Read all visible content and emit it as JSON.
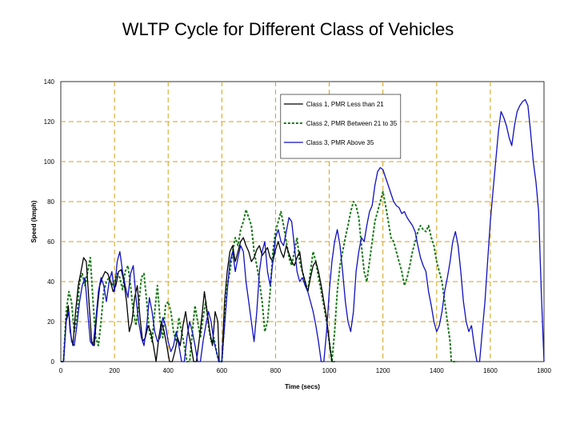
{
  "title": "WLTP Cycle for Different Class of Vehicles",
  "colors": {
    "class1": "#000000",
    "class2": "#1a7a1a",
    "class3": "#1010c0",
    "grid": "#d4a017",
    "plot_bg": "#ffffff"
  },
  "chart_data": {
    "type": "line",
    "title": "WLTP Cycle for Different Class of Vehicles",
    "xlabel": "Time (secs)",
    "ylabel": "Speed (kmph)",
    "xlim": [
      0,
      1800
    ],
    "ylim": [
      0,
      140
    ],
    "xticks": [
      0,
      200,
      400,
      600,
      800,
      1000,
      1200,
      1400,
      1600,
      1800
    ],
    "yticks": [
      0,
      20,
      40,
      60,
      80,
      100,
      120,
      140
    ],
    "grid": true,
    "legend_position": "top-right",
    "series": [
      {
        "name": "Class 1, PMR Less than 21",
        "style": "solid",
        "x": [
          0,
          10,
          20,
          28,
          35,
          45,
          55,
          65,
          75,
          85,
          95,
          105,
          115,
          125,
          135,
          145,
          155,
          165,
          175,
          185,
          195,
          205,
          215,
          225,
          235,
          245,
          255,
          265,
          275,
          285,
          295,
          305,
          315,
          325,
          335,
          345,
          355,
          365,
          375,
          385,
          395,
          405,
          415,
          425,
          435,
          445,
          455,
          465,
          475,
          485,
          495,
          505,
          515,
          525,
          535,
          545,
          555,
          565,
          575,
          585,
          590,
          600,
          610,
          620,
          630,
          640,
          650,
          660,
          670,
          680,
          690,
          700,
          710,
          720,
          730,
          740,
          750,
          760,
          770,
          780,
          790,
          800,
          810,
          820,
          830,
          840,
          850,
          860,
          870,
          880,
          890,
          900,
          910,
          920,
          930,
          940,
          950,
          960,
          970,
          980,
          990,
          1000,
          1010,
          1022
        ],
        "y": [
          0,
          0,
          20,
          28,
          15,
          8,
          25,
          38,
          45,
          52,
          50,
          30,
          10,
          8,
          25,
          38,
          42,
          45,
          44,
          40,
          35,
          38,
          45,
          46,
          40,
          30,
          15,
          20,
          32,
          38,
          22,
          10,
          12,
          18,
          15,
          8,
          0,
          12,
          20,
          15,
          8,
          0,
          0,
          5,
          12,
          8,
          18,
          25,
          15,
          8,
          0,
          0,
          10,
          22,
          35,
          25,
          15,
          8,
          25,
          20,
          0,
          0,
          30,
          45,
          55,
          58,
          50,
          55,
          60,
          62,
          58,
          55,
          50,
          52,
          56,
          58,
          53,
          55,
          57,
          52,
          50,
          56,
          60,
          55,
          52,
          58,
          54,
          50,
          48,
          52,
          55,
          45,
          40,
          35,
          42,
          48,
          50,
          45,
          38,
          30,
          22,
          10,
          0,
          0
        ]
      },
      {
        "name": "Class 2, PMR Between 21 to 35",
        "style": "dashed",
        "x": [
          0,
          10,
          20,
          30,
          40,
          50,
          60,
          70,
          80,
          90,
          100,
          110,
          120,
          130,
          140,
          150,
          160,
          170,
          180,
          190,
          200,
          210,
          220,
          230,
          240,
          250,
          260,
          270,
          280,
          290,
          300,
          310,
          320,
          330,
          340,
          350,
          360,
          370,
          380,
          390,
          400,
          410,
          420,
          430,
          440,
          450,
          460,
          470,
          480,
          490,
          500,
          510,
          520,
          530,
          540,
          550,
          560,
          570,
          580,
          589,
          600,
          610,
          620,
          630,
          640,
          650,
          660,
          670,
          680,
          690,
          700,
          710,
          720,
          730,
          740,
          750,
          760,
          770,
          780,
          790,
          800,
          810,
          820,
          830,
          840,
          850,
          860,
          870,
          880,
          890,
          900,
          910,
          920,
          930,
          940,
          950,
          960,
          970,
          980,
          990,
          1000,
          1010,
          1020,
          1030,
          1040,
          1050,
          1060,
          1070,
          1080,
          1090,
          1100,
          1110,
          1120,
          1130,
          1140,
          1150,
          1160,
          1170,
          1180,
          1190,
          1200,
          1210,
          1220,
          1230,
          1240,
          1250,
          1260,
          1270,
          1280,
          1290,
          1300,
          1310,
          1320,
          1330,
          1340,
          1350,
          1360,
          1370,
          1380,
          1390,
          1400,
          1410,
          1420,
          1430,
          1440,
          1450,
          1455,
          1465,
          1477
        ],
        "y": [
          0,
          0,
          25,
          35,
          30,
          15,
          22,
          40,
          44,
          38,
          45,
          52,
          30,
          12,
          8,
          20,
          35,
          40,
          42,
          38,
          40,
          44,
          42,
          36,
          45,
          48,
          38,
          25,
          18,
          28,
          42,
          44,
          30,
          15,
          10,
          25,
          38,
          20,
          12,
          28,
          30,
          25,
          15,
          10,
          22,
          15,
          8,
          0,
          0,
          15,
          28,
          20,
          12,
          22,
          30,
          18,
          10,
          12,
          5,
          0,
          0,
          20,
          38,
          45,
          55,
          62,
          58,
          66,
          70,
          76,
          72,
          68,
          55,
          48,
          40,
          30,
          15,
          20,
          35,
          55,
          65,
          70,
          75,
          68,
          60,
          52,
          48,
          55,
          62,
          50,
          45,
          40,
          35,
          45,
          55,
          50,
          42,
          35,
          28,
          20,
          10,
          0,
          15,
          35,
          48,
          55,
          62,
          68,
          75,
          80,
          78,
          72,
          58,
          45,
          40,
          50,
          60,
          70,
          75,
          80,
          85,
          78,
          70,
          62,
          60,
          55,
          50,
          45,
          38,
          42,
          48,
          55,
          60,
          65,
          68,
          66,
          65,
          68,
          62,
          58,
          50,
          45,
          40,
          30,
          20,
          10,
          0,
          0,
          0
        ]
      },
      {
        "name": "Class 3, PMR Above 35",
        "style": "solid",
        "x": [
          0,
          10,
          20,
          30,
          40,
          50,
          60,
          70,
          80,
          90,
          100,
          110,
          120,
          130,
          140,
          150,
          160,
          170,
          180,
          190,
          200,
          210,
          220,
          230,
          240,
          250,
          260,
          270,
          280,
          290,
          300,
          310,
          320,
          330,
          340,
          350,
          360,
          370,
          380,
          390,
          400,
          410,
          420,
          430,
          440,
          450,
          460,
          470,
          480,
          490,
          500,
          510,
          520,
          530,
          540,
          550,
          560,
          570,
          580,
          589,
          600,
          610,
          620,
          630,
          640,
          650,
          660,
          670,
          680,
          690,
          700,
          710,
          720,
          730,
          740,
          750,
          760,
          770,
          780,
          790,
          800,
          810,
          820,
          830,
          840,
          850,
          860,
          870,
          880,
          890,
          900,
          910,
          920,
          930,
          940,
          950,
          960,
          970,
          980,
          990,
          1000,
          1010,
          1020,
          1030,
          1040,
          1050,
          1060,
          1070,
          1080,
          1090,
          1100,
          1110,
          1120,
          1130,
          1140,
          1150,
          1160,
          1170,
          1180,
          1190,
          1200,
          1210,
          1220,
          1230,
          1240,
          1250,
          1260,
          1270,
          1280,
          1290,
          1300,
          1310,
          1320,
          1330,
          1340,
          1350,
          1360,
          1370,
          1380,
          1390,
          1400,
          1410,
          1420,
          1430,
          1440,
          1450,
          1460,
          1470,
          1480,
          1490,
          1500,
          1510,
          1520,
          1530,
          1540,
          1550,
          1560,
          1570,
          1580,
          1590,
          1600,
          1610,
          1620,
          1630,
          1640,
          1650,
          1660,
          1670,
          1680,
          1690,
          1700,
          1710,
          1720,
          1730,
          1740,
          1750,
          1760,
          1770,
          1780,
          1790,
          1800
        ],
        "y": [
          0,
          0,
          20,
          25,
          10,
          8,
          18,
          30,
          38,
          42,
          25,
          10,
          8,
          20,
          35,
          42,
          38,
          30,
          40,
          45,
          35,
          50,
          55,
          45,
          38,
          32,
          44,
          48,
          32,
          20,
          12,
          8,
          18,
          32,
          25,
          15,
          10,
          12,
          22,
          18,
          10,
          5,
          8,
          15,
          8,
          0,
          0,
          12,
          20,
          15,
          8,
          0,
          0,
          10,
          18,
          25,
          20,
          10,
          5,
          0,
          0,
          18,
          35,
          50,
          55,
          45,
          52,
          58,
          55,
          40,
          30,
          20,
          10,
          25,
          45,
          55,
          60,
          45,
          38,
          50,
          62,
          66,
          60,
          58,
          65,
          72,
          70,
          58,
          45,
          40,
          42,
          38,
          35,
          30,
          25,
          18,
          10,
          0,
          0,
          15,
          35,
          50,
          60,
          66,
          58,
          45,
          30,
          20,
          15,
          25,
          45,
          55,
          62,
          60,
          68,
          75,
          78,
          88,
          95,
          97,
          96,
          92,
          88,
          84,
          80,
          78,
          77,
          74,
          75,
          72,
          70,
          68,
          65,
          58,
          52,
          48,
          45,
          35,
          28,
          20,
          15,
          18,
          25,
          35,
          42,
          50,
          60,
          65,
          58,
          45,
          30,
          20,
          15,
          18,
          8,
          0,
          0,
          15,
          30,
          50,
          70,
          85,
          100,
          115,
          125,
          122,
          118,
          112,
          108,
          118,
          125,
          128,
          130,
          131,
          128,
          115,
          100,
          90,
          75,
          35,
          0
        ]
      }
    ]
  }
}
